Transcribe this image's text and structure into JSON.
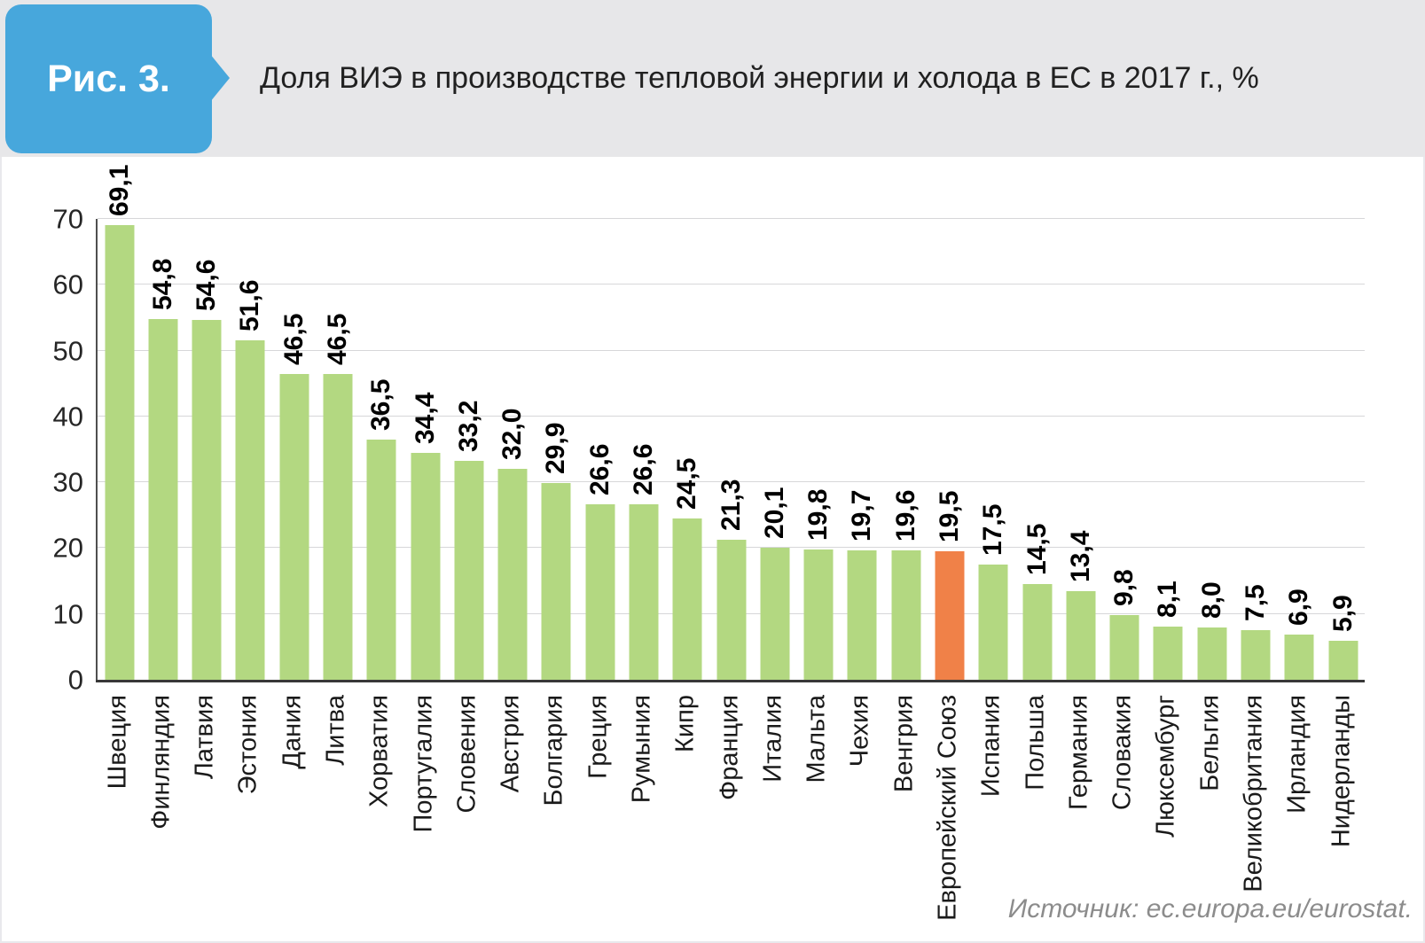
{
  "figure": {
    "badge": "Рис. 3.",
    "title": "Доля ВИЭ в производстве тепловой энергии и холода в ЕС в 2017 г., %"
  },
  "source": "Источник: ec.europa.eu/eurostat.",
  "colors": {
    "badge_blue": "#47a7dc",
    "header_gray": "#e7e7e9",
    "bar_green": "#b3d881",
    "bar_orange": "#f08148",
    "gridline": "#d7d7d9",
    "axis": "#383838"
  },
  "chart_data": {
    "type": "bar",
    "title": "Доля ВИЭ в производстве тепловой энергии и холода в ЕС в 2017 г., %",
    "xlabel": "",
    "ylabel": "%",
    "ylim": [
      0,
      70
    ],
    "yticks": [
      0,
      10,
      20,
      30,
      40,
      50,
      60,
      70
    ],
    "grid": true,
    "legend": false,
    "decimal_separator": ",",
    "categories": [
      "Швеция",
      "Финляндия",
      "Латвия",
      "Эстония",
      "Дания",
      "Литва",
      "Хорватия",
      "Португалия",
      "Словения",
      "Австрия",
      "Болгария",
      "Греция",
      "Румыния",
      "Кипр",
      "Франция",
      "Италия",
      "Мальта",
      "Чехия",
      "Венгрия",
      "Европейский Союз",
      "Испания",
      "Польша",
      "Германия",
      "Словакия",
      "Люксембург",
      "Бельгия",
      "Великобритания",
      "Ирландия",
      "Нидерланды"
    ],
    "values": [
      69.1,
      54.8,
      54.6,
      51.6,
      46.5,
      46.5,
      36.5,
      34.4,
      33.2,
      32.0,
      29.9,
      26.6,
      26.6,
      24.5,
      21.3,
      20.1,
      19.8,
      19.7,
      19.6,
      19.5,
      17.5,
      14.5,
      13.4,
      9.8,
      8.1,
      8.0,
      7.5,
      6.9,
      5.9
    ],
    "highlight_category": "Европейский Союз",
    "highlight_index": 19
  }
}
